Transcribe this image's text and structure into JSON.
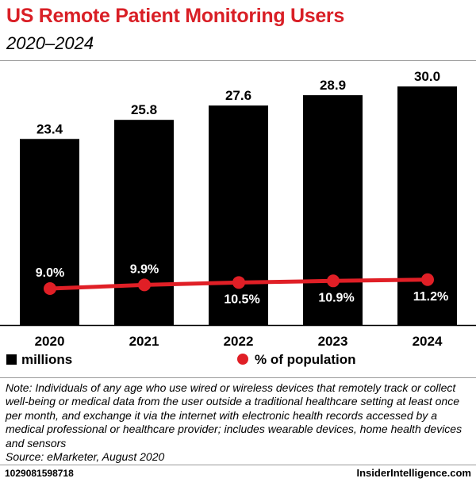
{
  "header": {
    "title": "US Remote Patient Monitoring Users",
    "subtitle": "2020–2024"
  },
  "chart_data": {
    "type": "bar",
    "categories": [
      "2020",
      "2021",
      "2022",
      "2023",
      "2024"
    ],
    "series": [
      {
        "name": "millions",
        "kind": "bar",
        "color": "#000000",
        "values": [
          23.4,
          25.8,
          27.6,
          28.9,
          30.0
        ],
        "labels": [
          "23.4",
          "25.8",
          "27.6",
          "28.9",
          "30.0"
        ]
      },
      {
        "name": "% of population",
        "kind": "line",
        "color": "#e01f26",
        "values": [
          9.0,
          9.9,
          10.5,
          10.9,
          11.2
        ],
        "labels": [
          "9.0%",
          "9.9%",
          "10.5%",
          "10.9%",
          "11.2%"
        ]
      }
    ],
    "title": "US Remote Patient Monitoring Users",
    "subtitle": "2020–2024",
    "xlabel": "",
    "ylabel": "",
    "ylim": [
      0,
      31.5
    ],
    "line_ylim": [
      0,
      36
    ]
  },
  "legend": {
    "bar_label": "millions",
    "line_label": "% of population"
  },
  "note": {
    "text": "Note: Individuals of any age who use wired or wireless devices that remotely track or collect well-being or medical data from the user outside a traditional healthcare setting at least once per month, and exchange it via the internet with electronic health records accessed by a medical professional or healthcare provider; includes wearable devices, home health devices and sensors",
    "source": "Source: eMarketer, August 2020"
  },
  "footer": {
    "id": "1029081598718",
    "brand": "InsiderIntelligence.com"
  },
  "colors": {
    "accent": "#d91f26",
    "bar": "#000000",
    "line": "#e01f26"
  }
}
